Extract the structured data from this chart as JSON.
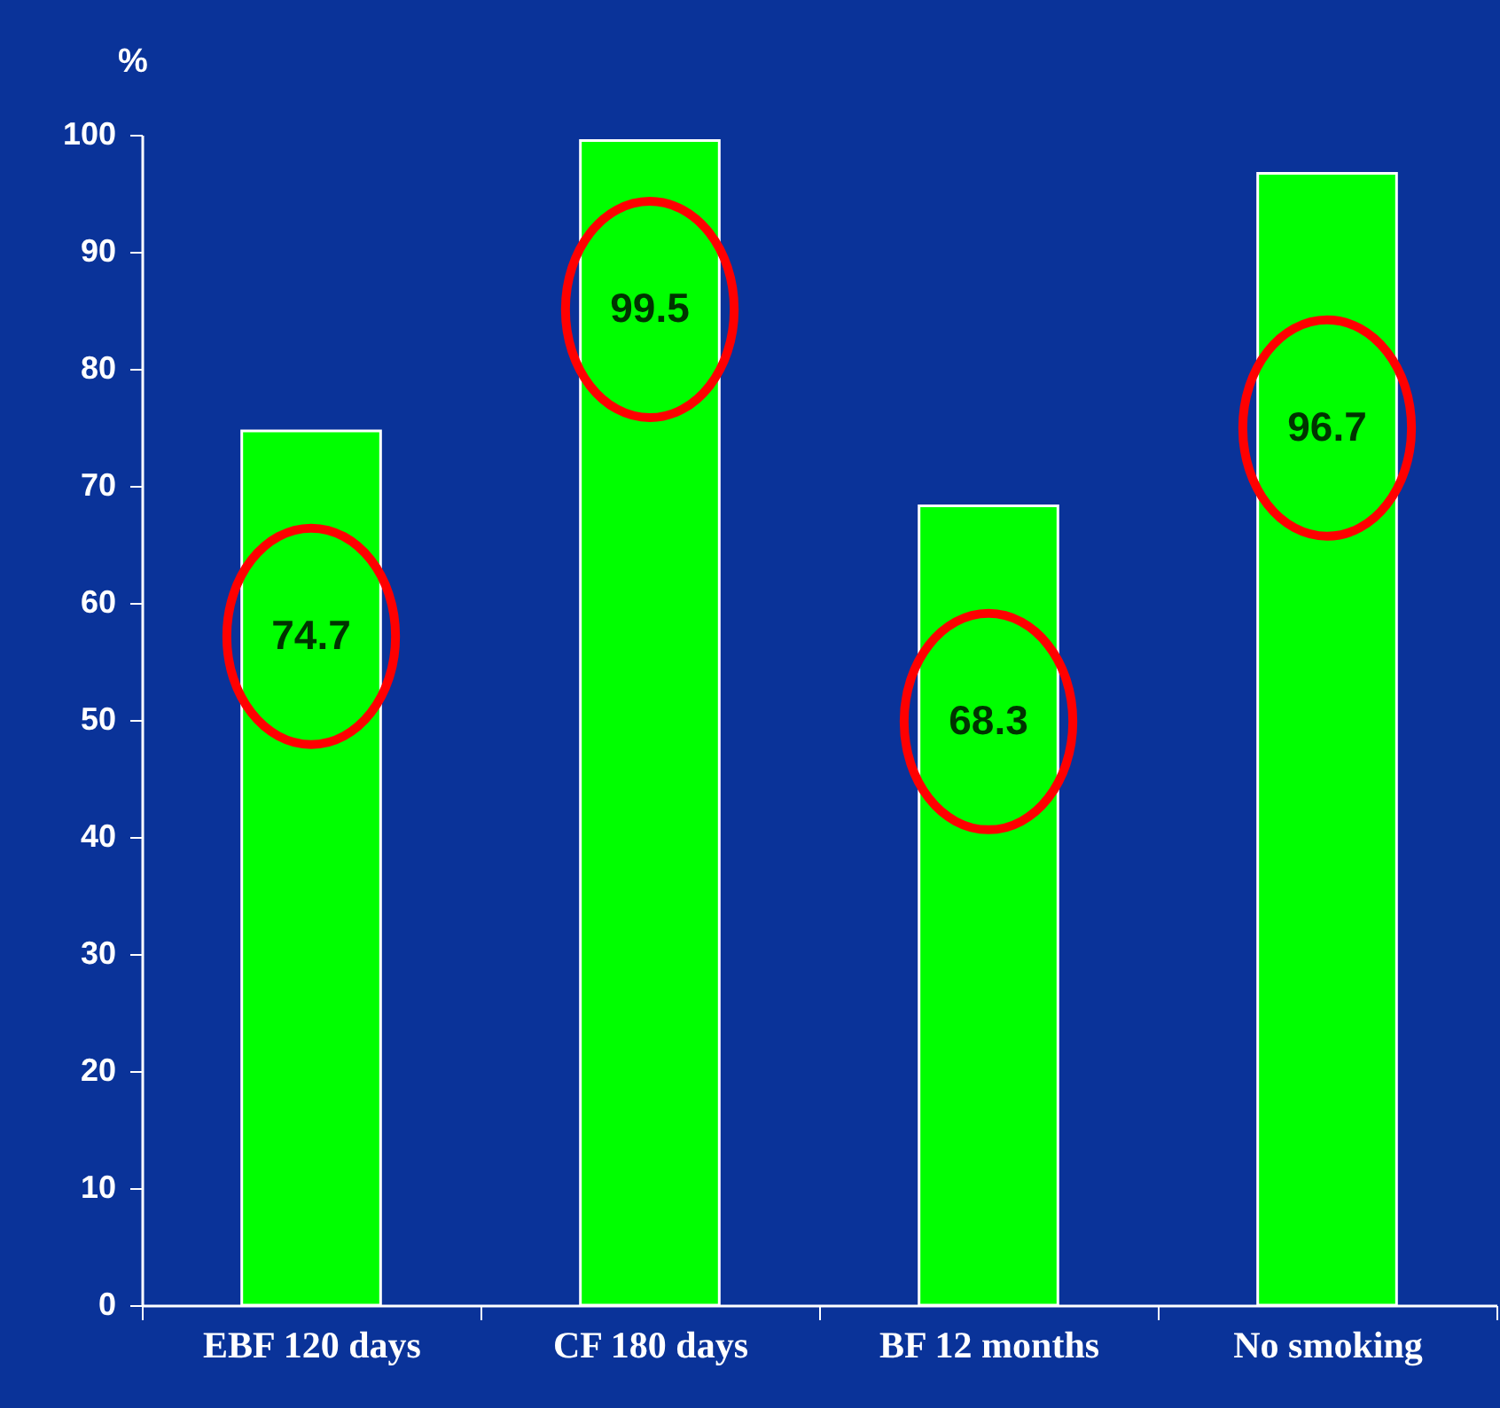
{
  "chart_data": {
    "type": "bar",
    "ylabel": "%",
    "categories": [
      "EBF 120 days",
      "CF 180 days",
      "BF 12 months",
      "No smoking"
    ],
    "values": [
      74.7,
      99.5,
      68.3,
      96.7
    ],
    "color": "#00ff00",
    "ylim": [
      0,
      100
    ],
    "yticks": [
      0,
      10,
      20,
      30,
      40,
      50,
      60,
      70,
      80,
      90,
      100
    ],
    "data_labels": true,
    "grid": false
  }
}
